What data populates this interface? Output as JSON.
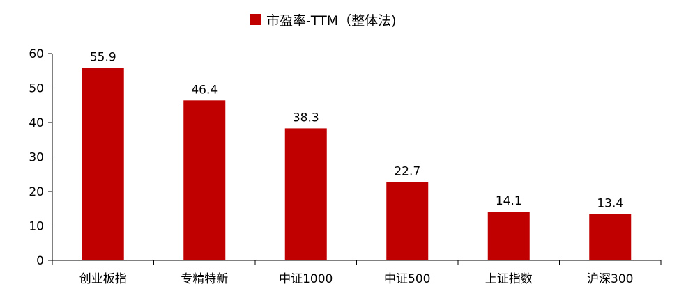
{
  "chart_data": {
    "type": "bar",
    "categories": [
      "创业板指",
      "专精特新",
      "中证1000",
      "中证500",
      "上证指数",
      "沪深300"
    ],
    "series": [
      {
        "name": "市盈率-TTM（整体法)",
        "values": [
          55.9,
          46.4,
          38.3,
          22.7,
          14.1,
          13.4
        ],
        "color": "#C00000"
      }
    ],
    "data_labels": [
      "55.9",
      "46.4",
      "38.3",
      "22.7",
      "14.1",
      "13.4"
    ],
    "yticks": [
      "0",
      "10",
      "20",
      "30",
      "40",
      "50",
      "60"
    ],
    "ylim": [
      0,
      60
    ],
    "grid": false,
    "legend_position": "top-center"
  }
}
